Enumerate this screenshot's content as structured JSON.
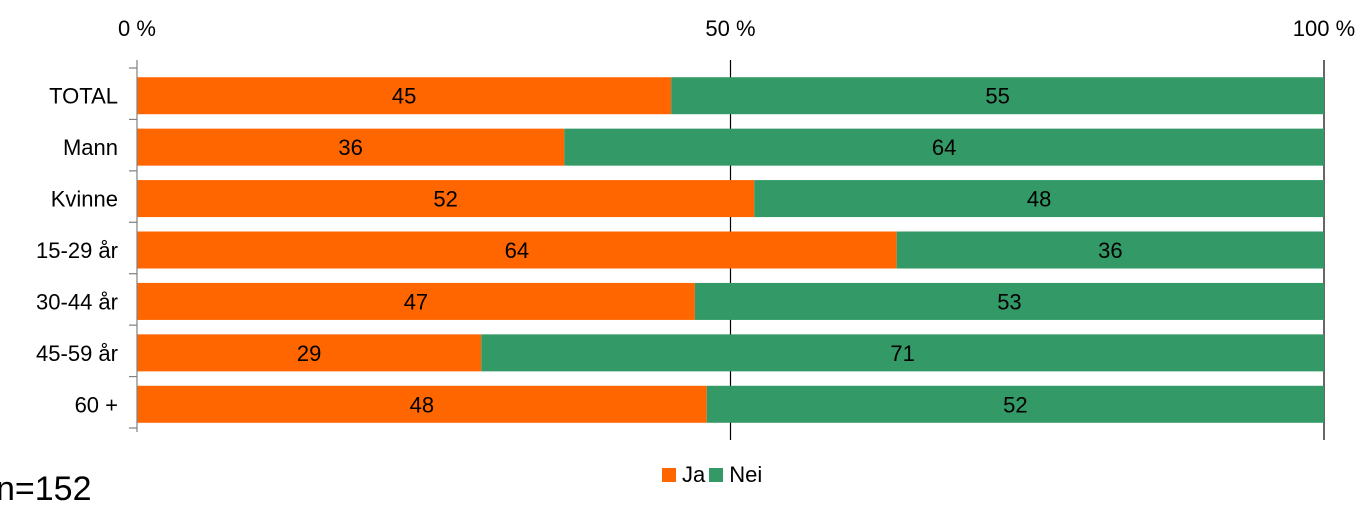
{
  "chart_data": {
    "type": "bar",
    "orientation": "horizontal",
    "stacked": true,
    "categories": [
      "TOTAL",
      "Mann",
      "Kvinne",
      "15-29 år",
      "30-44 år",
      "45-59 år",
      "60 +"
    ],
    "series": [
      {
        "name": "Ja",
        "values": [
          45,
          36,
          52,
          64,
          47,
          29,
          48
        ],
        "color": "#ff6600"
      },
      {
        "name": "Nei",
        "values": [
          55,
          64,
          48,
          36,
          53,
          71,
          52
        ],
        "color": "#339966"
      }
    ],
    "x_ticks": [
      "0 %",
      "50 %",
      "100 %"
    ],
    "xlim": [
      0,
      100
    ],
    "legend_position": "bottom",
    "grid": "vertical line at 50 %"
  },
  "footnote": "n=152"
}
